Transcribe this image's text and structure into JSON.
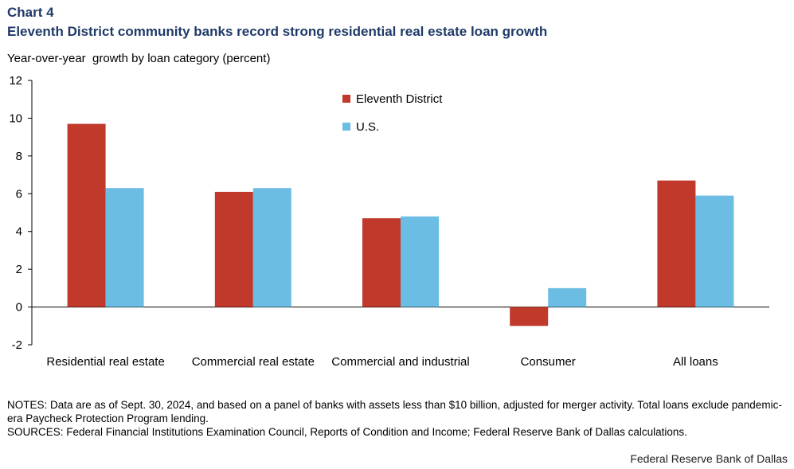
{
  "header": {
    "chart_label": "Chart 4",
    "title": "Eleventh District community banks record strong residential real estate loan growth"
  },
  "chart_data": {
    "type": "bar",
    "title": "Eleventh District community banks record strong residential real estate loan growth",
    "ylabel": "Year-over-year  growth by loan category (percent)",
    "xlabel": "",
    "categories": [
      "Residential real estate",
      "Commercial real estate",
      "Commercial and industrial",
      "Consumer",
      "All loans"
    ],
    "series": [
      {
        "name": "Eleventh District",
        "color": "#c0392b",
        "values": [
          9.7,
          6.1,
          4.7,
          -1.0,
          6.7
        ]
      },
      {
        "name": "U.S.",
        "color": "#6cbde3",
        "values": [
          6.3,
          6.3,
          4.8,
          1.0,
          5.9
        ]
      }
    ],
    "ylim": [
      -2,
      12
    ],
    "yticks": [
      -2,
      0,
      2,
      4,
      6,
      8,
      10,
      12
    ],
    "grid": false,
    "legend": "top-center"
  },
  "notes": {
    "line1": "NOTES: Data are as of Sept. 30, 2024, and based on a panel of banks with assets less than $10 billion, adjusted for merger activity. Total loans exclude pandemic-era Paycheck Protection Program lending.",
    "line2": "SOURCES: Federal Financial Institutions Examination Council, Reports of Condition and Income; Federal Reserve Bank of Dallas calculations."
  },
  "footer": {
    "source_org": "Federal Reserve Bank of Dallas"
  }
}
